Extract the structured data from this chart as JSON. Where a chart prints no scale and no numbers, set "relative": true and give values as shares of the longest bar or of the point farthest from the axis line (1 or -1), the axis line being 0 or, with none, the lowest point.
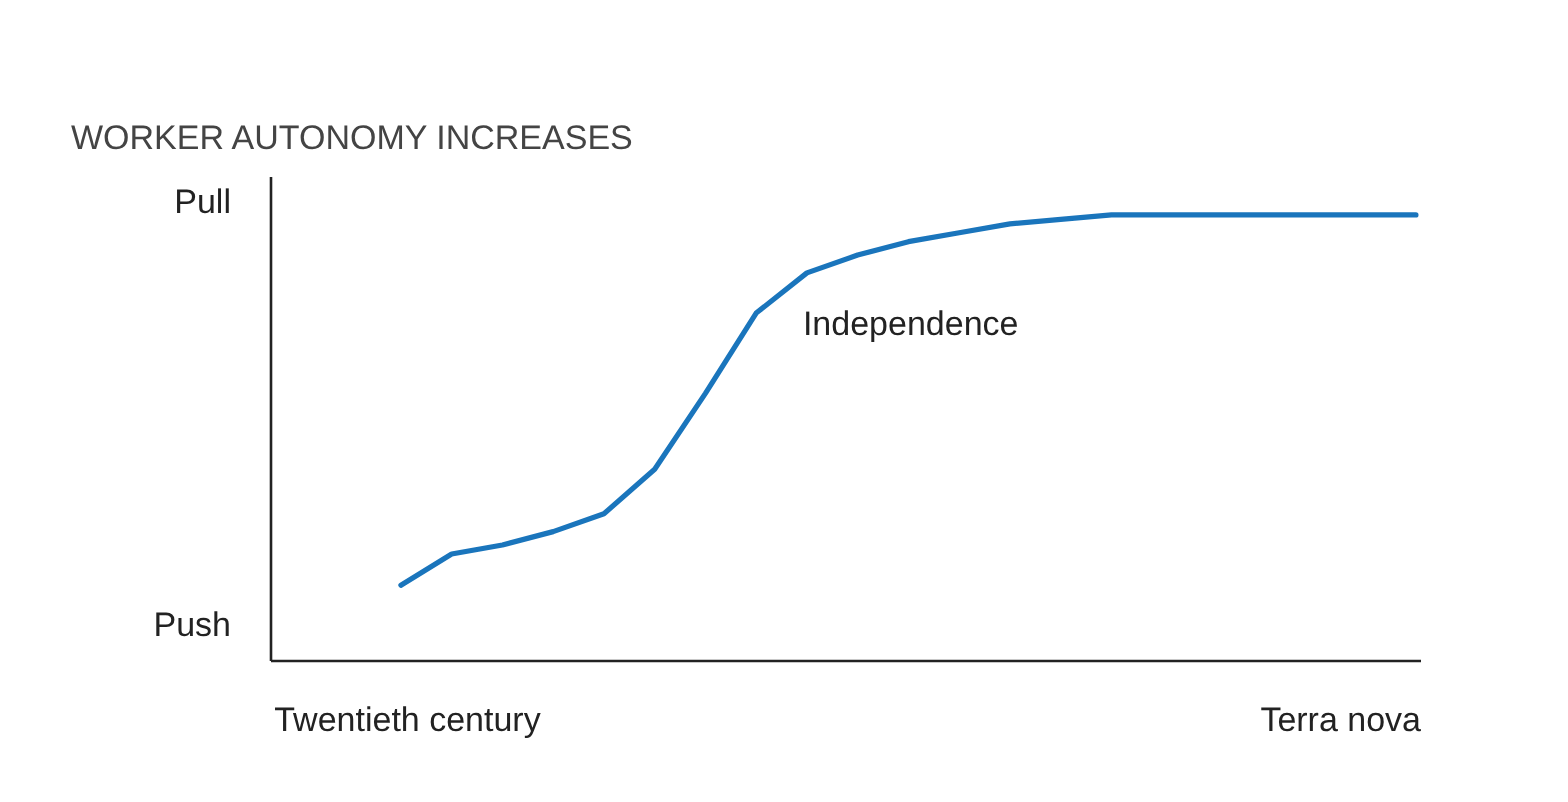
{
  "chart_data": {
    "type": "line",
    "title": "WORKER AUTONOMY INCREASES",
    "relative": true,
    "categories": [
      null,
      null,
      null,
      null,
      null,
      null,
      null,
      null,
      null,
      null,
      null,
      null,
      null,
      null,
      null,
      null,
      null,
      null,
      null,
      null,
      null
    ],
    "series": [
      {
        "name": "Independence",
        "color": "#1a75bc",
        "values": [
          0.17,
          0.24,
          0.26,
          0.29,
          0.33,
          0.43,
          0.6,
          0.78,
          0.87,
          0.91,
          0.94,
          0.96,
          0.98,
          0.99,
          1,
          1,
          1,
          1,
          1,
          1,
          1
        ]
      }
    ],
    "annotations": [
      "Pull",
      "Push",
      "Twentieth century",
      "Terra nova"
    ],
    "grid": false
  }
}
